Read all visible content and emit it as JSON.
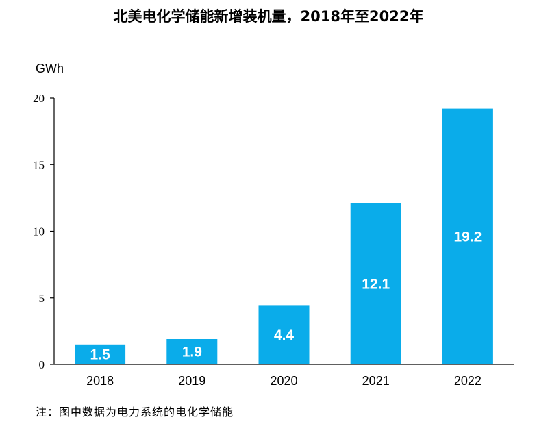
{
  "chart_data": {
    "type": "bar",
    "title": "北美电化学储能新增装机量，2018年至2022年",
    "ylabel": "GWh",
    "xlabel": "",
    "categories": [
      "2018",
      "2019",
      "2020",
      "2021",
      "2022"
    ],
    "values": [
      1.5,
      1.9,
      4.4,
      12.1,
      19.2
    ],
    "data_labels": [
      "1.5",
      "1.9",
      "4.4",
      "12.1",
      "19.2"
    ],
    "ylim": [
      0,
      20
    ],
    "yticks": [
      0,
      5,
      10,
      15,
      20
    ],
    "ytick_labels": [
      "0",
      "5",
      "10",
      "15",
      "20"
    ],
    "grid": false,
    "bar_color": "#0AACEA",
    "footnote": "注：图中数据为电力系统的电化学储能"
  }
}
